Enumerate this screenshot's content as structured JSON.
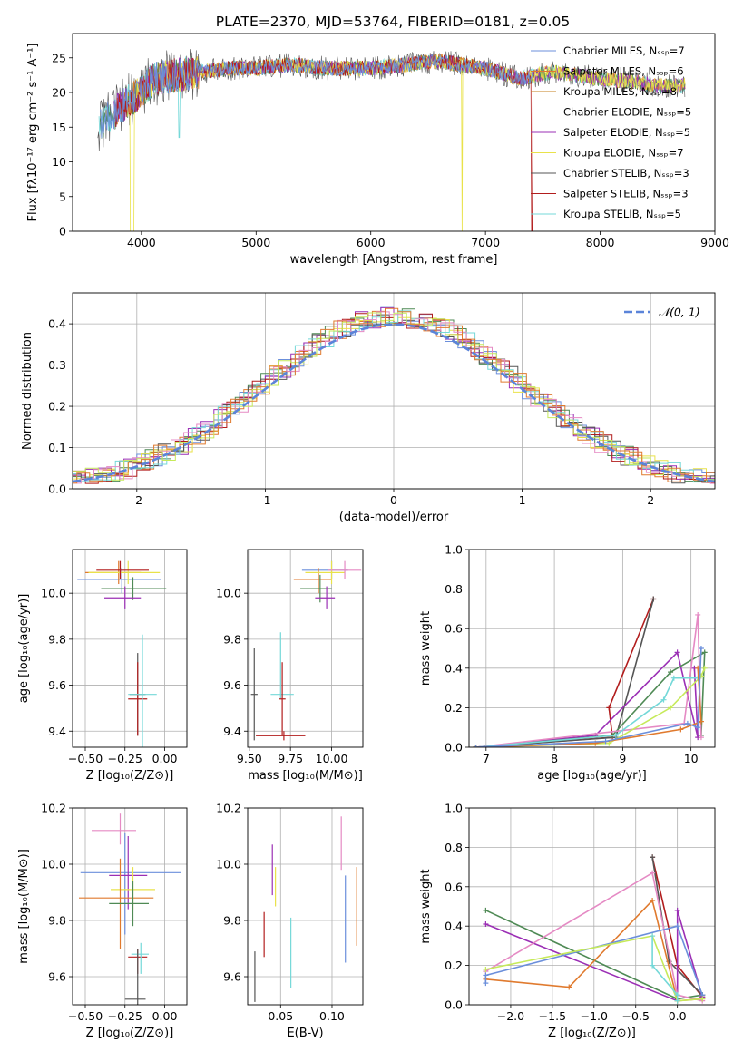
{
  "figure_title": "PLATE=2370, MJD=53764, FIBERID=0181, z=0.05",
  "colors": [
    "#6b8fdb",
    "#e07a2e",
    "#c47f1e",
    "#4f8a55",
    "#9b2fb5",
    "#e9e24a",
    "#555555",
    "#b21d1d",
    "#74d8d8"
  ],
  "extra_colors": {
    "pink": "#e58ac4",
    "lime": "#c6ea5a",
    "orange": "#e07a2e",
    "blue": "#6b8fdb"
  },
  "chart_data": [
    {
      "id": "spectrum",
      "type": "line",
      "title": "PLATE=2370, MJD=53764, FIBERID=0181, z=0.05",
      "xlabel": "wavelength [Angstrom, rest frame]",
      "ylabel": "Flux [fλ10⁻¹⁷ erg cm⁻² s⁻¹ A⁻¹]",
      "xlim": [
        3400,
        9000
      ],
      "ylim": [
        0,
        28.5
      ],
      "xticks": [
        4000,
        5000,
        6000,
        7000,
        8000,
        9000
      ],
      "yticks": [
        0,
        5,
        10,
        15,
        20,
        25
      ],
      "legend": [
        "Chabrier MILES, Nₛₛₚ=7",
        "Salpeter MILES, Nₛₛₚ=6",
        "Kroupa MILES, Nₛₛₚ=8",
        "Chabrier ELODIE, Nₛₛₚ=5",
        "Salpeter ELODIE, Nₛₛₚ=5",
        "Kroupa ELODIE, Nₛₛₚ=7",
        "Chabrier STELIB, Nₛₛₚ=3",
        "Salpeter STELIB, Nₛₛₚ=3",
        "Kroupa STELIB, Nₛₛₚ=5"
      ],
      "legend_placement": "upper right",
      "continuum": {
        "x": [
          3620,
          3700,
          3800,
          3900,
          4000,
          4100,
          4300,
          4500,
          4800,
          5000,
          5300,
          5600,
          6000,
          6300,
          6560,
          6600,
          6800,
          7000,
          7300,
          7600,
          7800,
          8000,
          8300,
          8500,
          8740
        ],
        "y": [
          15,
          16.5,
          17.5,
          19,
          20,
          22,
          22.5,
          23,
          23.5,
          23.5,
          24,
          23.5,
          23.5,
          24,
          24.5,
          24.5,
          24,
          23.5,
          22,
          23,
          22.5,
          22,
          21.5,
          21,
          21
        ]
      }
    },
    {
      "id": "residuals",
      "type": "histogram",
      "xlabel": "(data-model)/error",
      "ylabel": "Normed distribution",
      "xlim": [
        -2.5,
        2.5
      ],
      "ylim": [
        0,
        0.475
      ],
      "xticks": [
        -2,
        -1,
        0,
        1,
        2
      ],
      "yticks": [
        0.0,
        0.1,
        0.2,
        0.3,
        0.4
      ],
      "legend": [
        "𝒩(0, 1)"
      ],
      "legend_placement": "upper right",
      "bin_width": 0.1
    },
    {
      "id": "age_vs_Z",
      "type": "errorbar",
      "xlabel": "Z [log₁₀(Z/Z⊙)]",
      "ylabel": "age  [log₁₀(age/yr)]",
      "xlim": [
        -0.58,
        0.14
      ],
      "ylim": [
        9.33,
        10.19
      ],
      "xticks": [
        -0.5,
        -0.25,
        0.0
      ],
      "xticklabels": [
        "−0.50",
        "−0.25",
        "0.00"
      ],
      "yticks": [
        9.4,
        9.6,
        9.8,
        10.0
      ],
      "points": [
        {
          "x": -0.27,
          "y": 10.06,
          "xerr": [
            0.28,
            0.25
          ],
          "yerr": [
            0.06,
            0.05
          ],
          "c": 0
        },
        {
          "x": -0.29,
          "y": 10.09,
          "xerr": [
            0.21,
            0.14
          ],
          "yerr": [
            0.05,
            0.05
          ],
          "c": 1
        },
        {
          "x": -0.2,
          "y": 10.02,
          "xerr": [
            0.2,
            0.21
          ],
          "yerr": [
            0.05,
            0.05
          ],
          "c": 3
        },
        {
          "x": -0.25,
          "y": 9.98,
          "xerr": [
            0.13,
            0.1
          ],
          "yerr": [
            0.05,
            0.05
          ],
          "c": 4
        },
        {
          "x": -0.23,
          "y": 10.09,
          "xerr": [
            0.25,
            0.2
          ],
          "yerr": [
            0.05,
            0.05
          ],
          "c": 5
        },
        {
          "x": -0.28,
          "y": 10.1,
          "xerr": [
            0.15,
            0.18
          ],
          "yerr": [
            0.04,
            0.04
          ],
          "c": 7
        },
        {
          "x": -0.17,
          "y": 9.56,
          "xerr": [
            0.05,
            0.05
          ],
          "yerr": [
            0.18,
            0.18
          ],
          "c": 6
        },
        {
          "x": -0.17,
          "y": 9.54,
          "xerr": [
            0.06,
            0.06
          ],
          "yerr": [
            0.16,
            0.16
          ],
          "c": 7
        },
        {
          "x": -0.14,
          "y": 9.56,
          "xerr": [
            0.09,
            0.09
          ],
          "yerr": [
            0.26,
            0.26
          ],
          "c": 8
        }
      ]
    },
    {
      "id": "age_vs_mass",
      "type": "errorbar",
      "xlabel": "mass [log₁₀(M/M⊙)]",
      "xlim": [
        9.49,
        10.19
      ],
      "ylim": [
        9.33,
        10.19
      ],
      "xticks": [
        9.5,
        9.75,
        10.0
      ],
      "xticklabels": [
        "9.50",
        "9.75",
        "10.00"
      ],
      "yticks": [
        9.4,
        9.6,
        9.8,
        10.0
      ],
      "points": [
        {
          "x": 10.0,
          "y": 10.1,
          "xerr": [
            0.18,
            0.1
          ],
          "yerr": [
            0.04,
            0.04
          ],
          "c": 0
        },
        {
          "x": 9.92,
          "y": 10.06,
          "xerr": [
            0.15,
            0.08
          ],
          "yerr": [
            0.06,
            0.05
          ],
          "c": 1
        },
        {
          "x": 9.93,
          "y": 10.02,
          "xerr": [
            0.12,
            0.07
          ],
          "yerr": [
            0.06,
            0.06
          ],
          "c": 3
        },
        {
          "x": 9.97,
          "y": 9.98,
          "xerr": [
            0.07,
            0.05
          ],
          "yerr": [
            0.05,
            0.05
          ],
          "c": 4
        },
        {
          "x": 10.0,
          "y": 10.09,
          "xerr": [
            0.16,
            0.08
          ],
          "yerr": [
            0.05,
            0.05
          ],
          "c": 5
        },
        {
          "x": 10.08,
          "y": 10.1,
          "xerr": [
            0.1,
            0.1
          ],
          "yerr": [
            0.04,
            0.04
          ],
          "c": "pink"
        },
        {
          "x": 9.53,
          "y": 9.56,
          "xerr": [
            0.02,
            0.02
          ],
          "yerr": [
            0.2,
            0.2
          ],
          "c": 6
        },
        {
          "x": 9.71,
          "y": 9.38,
          "xerr": [
            0.17,
            0.13
          ],
          "yerr": [
            0.02,
            0.02
          ],
          "c": 7
        },
        {
          "x": 9.69,
          "y": 9.56,
          "xerr": [
            0.06,
            0.08
          ],
          "yerr": [
            0.02,
            0.27
          ],
          "c": 8
        },
        {
          "x": 9.7,
          "y": 9.54,
          "xerr": [
            0.02,
            0.02
          ],
          "yerr": [
            0.16,
            0.16
          ],
          "c": 7
        }
      ]
    },
    {
      "id": "weight_vs_age",
      "type": "line",
      "xlabel": "age  [log₁₀(age/yr)]",
      "ylabel": "mass weight",
      "xlim": [
        6.75,
        10.35
      ],
      "ylim": [
        0,
        1.0
      ],
      "xticks": [
        7,
        8,
        9,
        10
      ],
      "yticks": [
        0.0,
        0.2,
        0.4,
        0.6,
        0.8,
        1.0
      ],
      "series": [
        {
          "c": 7,
          "x": [
            6.85,
            8.85,
            8.8,
            9.45
          ],
          "y": [
            0.0,
            0.05,
            0.2,
            0.75
          ]
        },
        {
          "c": 6,
          "x": [
            6.85,
            8.9,
            9.45
          ],
          "y": [
            0.0,
            0.05,
            0.75
          ]
        },
        {
          "c": 4,
          "x": [
            6.85,
            8.6,
            9.8,
            10.1,
            10.05
          ],
          "y": [
            0.0,
            0.06,
            0.48,
            0.05,
            0.4
          ]
        },
        {
          "c": 3,
          "x": [
            6.85,
            8.85,
            9.7,
            10.2,
            10.15
          ],
          "y": [
            0.0,
            0.06,
            0.38,
            0.48,
            0.06
          ]
        },
        {
          "c": "pink",
          "x": [
            6.85,
            9.9,
            10.1,
            10.15
          ],
          "y": [
            0.0,
            0.12,
            0.67,
            0.05
          ]
        },
        {
          "c": "lime",
          "x": [
            6.85,
            8.8,
            9.7,
            10.15,
            10.2
          ],
          "y": [
            0.0,
            0.02,
            0.2,
            0.36,
            0.4
          ]
        },
        {
          "c": 8,
          "x": [
            6.85,
            8.9,
            9.6,
            9.75,
            10.1
          ],
          "y": [
            0.0,
            0.06,
            0.24,
            0.35,
            0.35
          ]
        },
        {
          "c": "orange",
          "x": [
            6.85,
            8.6,
            9.85,
            10.15,
            10.1
          ],
          "y": [
            0.0,
            0.02,
            0.09,
            0.13,
            0.4
          ]
        },
        {
          "c": "blue",
          "x": [
            6.85,
            8.75,
            9.95,
            10.1,
            10.15
          ],
          "y": [
            0.0,
            0.03,
            0.12,
            0.1,
            0.5
          ]
        }
      ]
    },
    {
      "id": "mass_vs_Z",
      "type": "errorbar",
      "xlabel": "Z [log₁₀(Z/Z⊙)]",
      "ylabel": "mass [log₁₀(M/M⊙)]",
      "xlim": [
        -0.58,
        0.14
      ],
      "ylim": [
        9.5,
        10.2
      ],
      "xticks": [
        -0.5,
        -0.25,
        0.0
      ],
      "xticklabels": [
        "−0.50",
        "−0.25",
        "0.00"
      ],
      "yticks": [
        9.6,
        9.8,
        10.0,
        10.2
      ],
      "points": [
        {
          "x": -0.28,
          "y": 10.12,
          "xerr": [
            0.18,
            0.1
          ],
          "yerr": [
            0.05,
            0.06
          ],
          "c": "pink"
        },
        {
          "x": -0.25,
          "y": 9.97,
          "xerr": [
            0.28,
            0.35
          ],
          "yerr": [
            0.22,
            0.14
          ],
          "c": 0
        },
        {
          "x": -0.23,
          "y": 9.96,
          "xerr": [
            0.12,
            0.12
          ],
          "yerr": [
            0.12,
            0.14
          ],
          "c": 4
        },
        {
          "x": -0.2,
          "y": 9.91,
          "xerr": [
            0.14,
            0.14
          ],
          "yerr": [
            0.07,
            0.08
          ],
          "c": 5
        },
        {
          "x": -0.28,
          "y": 9.88,
          "xerr": [
            0.26,
            0.21
          ],
          "yerr": [
            0.18,
            0.14
          ],
          "c": 1
        },
        {
          "x": -0.2,
          "y": 9.86,
          "xerr": [
            0.15,
            0.1
          ],
          "yerr": [
            0.08,
            0.08
          ],
          "c": 3
        },
        {
          "x": -0.17,
          "y": 9.67,
          "xerr": [
            0.06,
            0.06
          ],
          "yerr": [
            0.06,
            0.03
          ],
          "c": 7
        },
        {
          "x": -0.15,
          "y": 9.68,
          "xerr": [
            0.06,
            0.05
          ],
          "yerr": [
            0.07,
            0.04
          ],
          "c": 8
        },
        {
          "x": -0.17,
          "y": 9.52,
          "xerr": [
            0.08,
            0.05
          ],
          "yerr": [
            0.1,
            0.18
          ],
          "c": 6
        }
      ]
    },
    {
      "id": "mass_vs_ebv",
      "type": "errorbar",
      "xlabel": "E(B-V)",
      "xlim": [
        0.018,
        0.13
      ],
      "ylim": [
        9.5,
        10.2
      ],
      "xticks": [
        0.05,
        0.1
      ],
      "xticklabels": [
        "0.05",
        "0.10"
      ],
      "yticks": [
        9.6,
        9.8,
        10.0,
        10.2
      ],
      "points": [
        {
          "x": 0.025,
          "y": 9.6,
          "yerr": [
            0.09,
            0.09
          ],
          "c": 6
        },
        {
          "x": 0.034,
          "y": 9.75,
          "yerr": [
            0.08,
            0.08
          ],
          "c": 7
        },
        {
          "x": 0.042,
          "y": 9.95,
          "yerr": [
            0.06,
            0.12
          ],
          "c": 4
        },
        {
          "x": 0.045,
          "y": 9.92,
          "yerr": [
            0.07,
            0.07
          ],
          "c": 5
        },
        {
          "x": 0.06,
          "y": 9.69,
          "yerr": [
            0.13,
            0.12
          ],
          "c": 8
        },
        {
          "x": 0.109,
          "y": 10.05,
          "yerr": [
            0.07,
            0.12
          ],
          "c": "pink"
        },
        {
          "x": 0.113,
          "y": 9.8,
          "yerr": [
            0.15,
            0.16
          ],
          "c": 0
        },
        {
          "x": 0.124,
          "y": 9.85,
          "yerr": [
            0.14,
            0.14
          ],
          "c": 1
        }
      ]
    },
    {
      "id": "weight_vs_Z",
      "type": "line",
      "xlabel": "Z [log₁₀(Z/Z⊙)]",
      "ylabel": "mass weight",
      "xlim": [
        -2.5,
        0.45
      ],
      "ylim": [
        0,
        1.0
      ],
      "xticks": [
        -2.0,
        -1.5,
        -1.0,
        -0.5,
        0.0
      ],
      "xticklabels": [
        "−2.0",
        "−1.5",
        "−1.0",
        "−0.5",
        "0.0"
      ],
      "yticks": [
        0.0,
        0.2,
        0.4,
        0.6,
        0.8,
        1.0
      ],
      "series": [
        {
          "c": 7,
          "x": [
            -0.3,
            0.0,
            0.3
          ],
          "y": [
            0.75,
            0.2,
            0.04
          ]
        },
        {
          "c": 6,
          "x": [
            -0.3,
            -0.1,
            0.3
          ],
          "y": [
            0.75,
            0.22,
            0.05
          ]
        },
        {
          "c": 3,
          "x": [
            -2.3,
            0.0,
            0.3
          ],
          "y": [
            0.48,
            0.03,
            0.05
          ]
        },
        {
          "c": 4,
          "x": [
            -2.3,
            0.0,
            0.0,
            0.3
          ],
          "y": [
            0.41,
            0.02,
            0.48,
            0.04
          ]
        },
        {
          "c": "pink",
          "x": [
            -2.3,
            -0.3,
            0.0,
            0.3
          ],
          "y": [
            0.17,
            0.67,
            0.05,
            0.02
          ]
        },
        {
          "c": "orange",
          "x": [
            -2.3,
            -1.3,
            -0.3,
            0.0,
            0.3
          ],
          "y": [
            0.13,
            0.09,
            0.53,
            0.02,
            0.03
          ]
        },
        {
          "c": "blue",
          "x": [
            -2.3,
            -2.3,
            0.0,
            0.3
          ],
          "y": [
            0.11,
            0.15,
            0.4,
            0.05
          ]
        },
        {
          "c": "lime",
          "x": [
            -2.3,
            -0.3,
            0.0,
            0.3
          ],
          "y": [
            0.18,
            0.35,
            0.02,
            0.03
          ]
        },
        {
          "c": 8,
          "x": [
            -0.3,
            -0.3,
            0.0,
            0.0
          ],
          "y": [
            0.35,
            0.2,
            0.05,
            0.02
          ]
        }
      ]
    }
  ]
}
